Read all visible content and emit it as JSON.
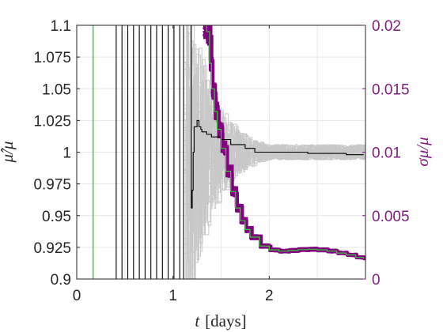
{
  "chart_data": {
    "type": "line",
    "xlabel": {
      "var": "t",
      "unit": "[days]"
    },
    "ylabel_left": {
      "text": "μ̂/μ"
    },
    "ylabel_right": {
      "text": "σμ/μ"
    },
    "xlim": [
      0,
      3
    ],
    "ylim_left": [
      0.9,
      1.1
    ],
    "ylim_right": [
      0,
      0.02
    ],
    "grid": true,
    "legend": "none",
    "x_ticks": [
      0,
      1,
      2
    ],
    "x_tick_labels": [
      "0",
      "1",
      "2"
    ],
    "y_left_ticks": [
      0.9,
      0.925,
      0.95,
      0.975,
      1.0,
      1.025,
      1.05,
      1.075,
      1.1
    ],
    "y_left_tick_labels": [
      "0.9",
      "0.925",
      "0.95",
      "0.975",
      "1",
      "1.025",
      "1.05",
      "1.075",
      "1.1"
    ],
    "y_right_ticks": [
      0,
      0.005,
      0.01,
      0.015,
      0.02
    ],
    "y_right_tick_labels": [
      "0",
      "0.005",
      "0.01",
      "0.015",
      "0.02"
    ],
    "colors": {
      "ensemble_estimate": "#c8c8c8",
      "mean_estimate": "#000000",
      "ensemble_sigma": "#800080",
      "mean_sigma": "#33cc33",
      "right_axis": "#7e1e80"
    },
    "series": [
      {
        "axis": "left",
        "style": "step",
        "x": [
          0.35,
          0.41,
          0.47,
          0.53,
          0.59,
          0.65,
          0.71,
          0.77,
          0.83,
          0.89,
          0.95,
          1.01,
          1.07,
          1.11,
          1.17,
          1.19,
          1.2,
          1.21,
          1.22,
          1.25,
          1.27,
          1.29,
          1.3,
          1.35,
          1.4,
          1.5,
          1.6,
          1.75,
          1.85,
          2.0,
          2.2,
          2.4,
          2.6,
          2.8,
          2.98
        ],
        "y": [
          0.9,
          1.1,
          0.9,
          1.1,
          0.9,
          1.1,
          0.9,
          1.1,
          0.9,
          1.1,
          0.9,
          1.1,
          0.9,
          1.1,
          1.1,
          0.956,
          0.97,
          1.0,
          1.02,
          1.025,
          1.02,
          1.018,
          1.016,
          1.014,
          1.012,
          1.01,
          1.006,
          1.003,
          1.0,
          1.0,
          1.0,
          0.999,
          0.999,
          0.998,
          0.998
        ]
      },
      {
        "axis": "right",
        "style": "step",
        "x": [
          1.33,
          1.35,
          1.38,
          1.4,
          1.43,
          1.46,
          1.5,
          1.55,
          1.6,
          1.65,
          1.7,
          1.75,
          1.8,
          1.9,
          2.0,
          2.1,
          2.2,
          2.3,
          2.4,
          2.5,
          2.6,
          2.7,
          2.8,
          2.9,
          2.98
        ],
        "y": [
          0.02,
          0.0195,
          0.017,
          0.015,
          0.0132,
          0.0118,
          0.0103,
          0.0085,
          0.0069,
          0.0056,
          0.0046,
          0.0039,
          0.0033,
          0.0026,
          0.0023,
          0.0022,
          0.00225,
          0.00232,
          0.00235,
          0.0023,
          0.0022,
          0.00205,
          0.0019,
          0.0017,
          0.0016
        ]
      }
    ]
  }
}
